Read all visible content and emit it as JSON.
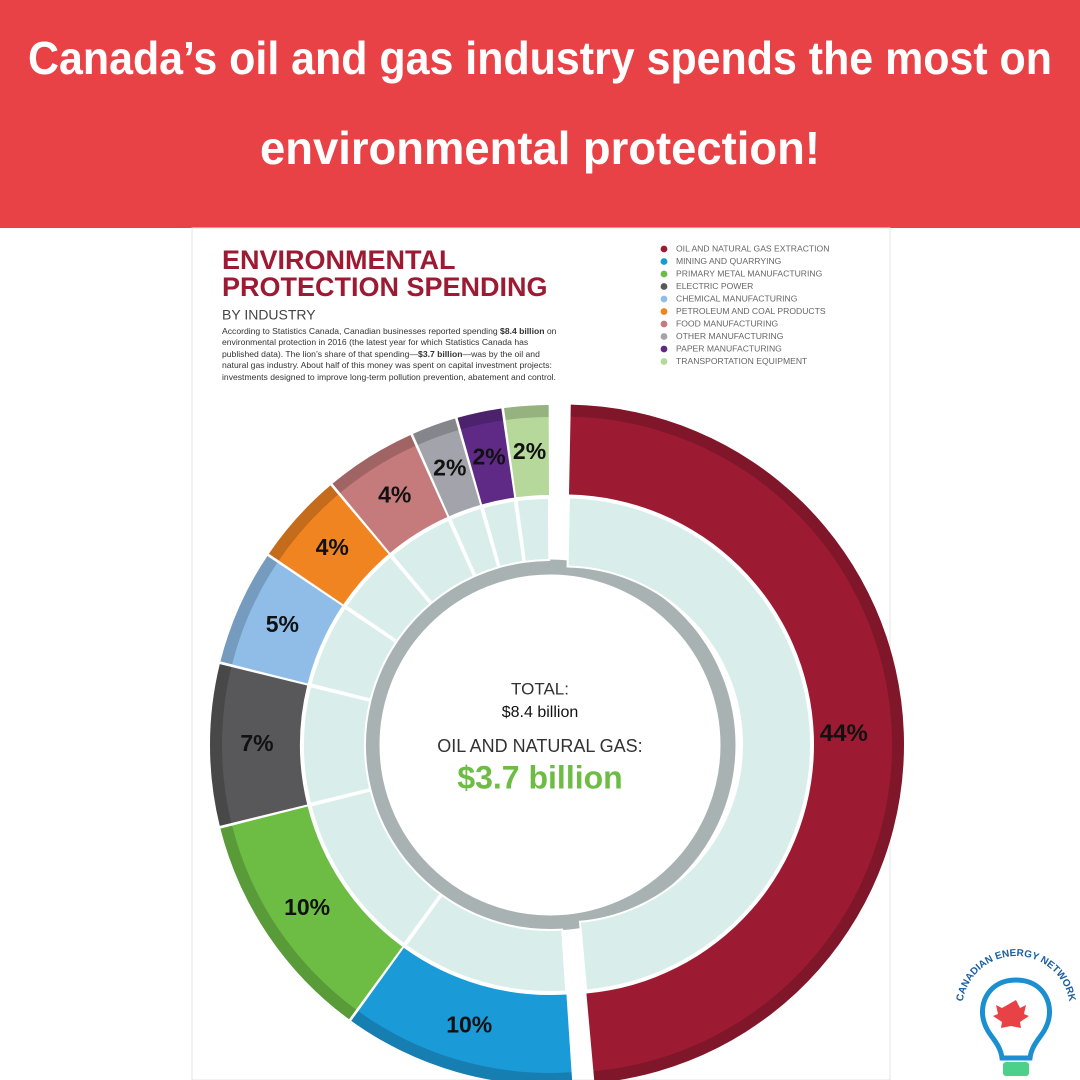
{
  "header": {
    "title_lines": [
      "Canada’s oil and gas industry spends the most on",
      "environmental protection!"
    ]
  },
  "chart_data": {
    "type": "donut",
    "title": "ENVIRONMENTAL PROTECTION SPENDING",
    "subtitle": "BY INDUSTRY",
    "description": [
      "According to Statistics Canada, Canadian businesses reported spending ",
      "$8.4 billion",
      " on environmental protection in 2016 (the latest year for which Statistics Canada has published data). The lion’s share of that spending—",
      "$3.7 billion",
      "—was by the oil and natural gas industry. About half of this money was spent on capital investment projects: investments designed to improve long-term pollution prevention, abatement and control."
    ],
    "categories": [
      "OIL AND NATURAL GAS EXTRACTION",
      "MINING AND QUARRYING",
      "PRIMARY METAL MANUFACTURING",
      "ELECTRIC POWER",
      "CHEMICAL MANUFACTURING",
      "PETROLEUM AND COAL PRODUCTS",
      "FOOD MANUFACTURING",
      "OTHER MANUFACTURING",
      "PAPER MANUFACTURING",
      "TRANSPORTATION EQUIPMENT"
    ],
    "values": [
      44,
      10,
      10,
      7,
      5,
      4,
      4,
      2,
      2,
      2
    ],
    "value_labels": [
      "44%",
      "10%",
      "10%",
      "7%",
      "5%",
      "4%",
      "4%",
      "2%",
      "2%",
      "2%"
    ],
    "colors": [
      "#9c1b33",
      "#1b9ad8",
      "#6dbd45",
      "#58585a",
      "#8fbde8",
      "#f08421",
      "#c57b7b",
      "#a3a3ab",
      "#5f2a86",
      "#b6d99b"
    ],
    "center": {
      "total_label": "TOTAL:",
      "total_value": "$8.4 billion",
      "oil_label": "OIL AND NATURAL GAS:",
      "oil_value": "$3.7 billion"
    }
  },
  "logo": {
    "text": "CANADIAN ENERGY NETWORK"
  }
}
